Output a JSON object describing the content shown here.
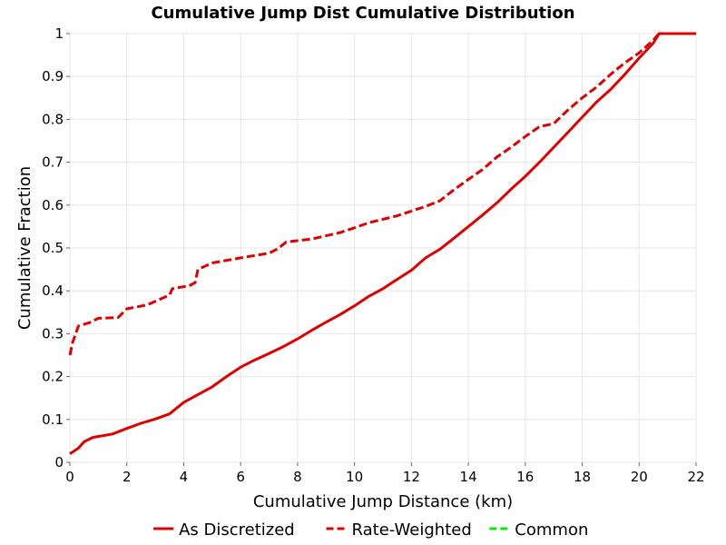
{
  "chart_data": {
    "type": "line",
    "title": "Cumulative Jump Dist Cumulative Distribution",
    "xlabel": "Cumulative Jump Distance (km)",
    "ylabel": "Cumulative Fraction",
    "xlim": [
      0,
      22
    ],
    "ylim": [
      0,
      1
    ],
    "x_ticks": [
      "0",
      "2",
      "4",
      "6",
      "8",
      "10",
      "12",
      "14",
      "16",
      "18",
      "20",
      "22"
    ],
    "y_ticks": [
      "0",
      "0.1",
      "0.2",
      "0.3",
      "0.4",
      "0.5",
      "0.6",
      "0.7",
      "0.8",
      "0.9",
      "1"
    ],
    "grid": true,
    "legend_position": "bottom",
    "series": [
      {
        "name": "As Discretized",
        "color": "#e00000",
        "dash": "solid",
        "points": [
          [
            0,
            0.02
          ],
          [
            0.3,
            0.033
          ],
          [
            0.5,
            0.048
          ],
          [
            0.8,
            0.058
          ],
          [
            1.5,
            0.066
          ],
          [
            2.0,
            0.079
          ],
          [
            2.5,
            0.091
          ],
          [
            3.0,
            0.101
          ],
          [
            3.5,
            0.113
          ],
          [
            4.0,
            0.14
          ],
          [
            4.5,
            0.158
          ],
          [
            5.0,
            0.176
          ],
          [
            5.5,
            0.2
          ],
          [
            6.0,
            0.222
          ],
          [
            6.5,
            0.239
          ],
          [
            7.0,
            0.254
          ],
          [
            7.5,
            0.27
          ],
          [
            8.0,
            0.288
          ],
          [
            8.5,
            0.308
          ],
          [
            9.0,
            0.327
          ],
          [
            9.5,
            0.345
          ],
          [
            10.0,
            0.365
          ],
          [
            10.5,
            0.387
          ],
          [
            11.0,
            0.405
          ],
          [
            11.5,
            0.427
          ],
          [
            12.0,
            0.448
          ],
          [
            12.5,
            0.477
          ],
          [
            13.0,
            0.497
          ],
          [
            13.5,
            0.523
          ],
          [
            14.0,
            0.55
          ],
          [
            14.5,
            0.577
          ],
          [
            15.0,
            0.605
          ],
          [
            15.5,
            0.637
          ],
          [
            16.0,
            0.667
          ],
          [
            16.5,
            0.7
          ],
          [
            17.0,
            0.735
          ],
          [
            17.5,
            0.77
          ],
          [
            18.0,
            0.805
          ],
          [
            18.5,
            0.84
          ],
          [
            19.0,
            0.87
          ],
          [
            19.5,
            0.905
          ],
          [
            20.0,
            0.943
          ],
          [
            20.5,
            0.978
          ],
          [
            20.7,
            1.0
          ],
          [
            22.0,
            1.0
          ]
        ]
      },
      {
        "name": "Rate-Weighted",
        "color": "#e00000",
        "dash": "dashed",
        "points": [
          [
            0,
            0.25
          ],
          [
            0.1,
            0.28
          ],
          [
            0.3,
            0.318
          ],
          [
            0.7,
            0.326
          ],
          [
            1.0,
            0.336
          ],
          [
            1.7,
            0.338
          ],
          [
            2.0,
            0.358
          ],
          [
            2.7,
            0.367
          ],
          [
            3.5,
            0.39
          ],
          [
            3.6,
            0.405
          ],
          [
            4.2,
            0.412
          ],
          [
            4.4,
            0.419
          ],
          [
            4.5,
            0.45
          ],
          [
            5.0,
            0.465
          ],
          [
            6.0,
            0.477
          ],
          [
            7.0,
            0.488
          ],
          [
            7.3,
            0.498
          ],
          [
            7.6,
            0.514
          ],
          [
            8.5,
            0.521
          ],
          [
            9.5,
            0.536
          ],
          [
            10.0,
            0.547
          ],
          [
            10.5,
            0.559
          ],
          [
            11.5,
            0.575
          ],
          [
            12.5,
            0.597
          ],
          [
            13.0,
            0.61
          ],
          [
            13.5,
            0.636
          ],
          [
            14.0,
            0.66
          ],
          [
            14.5,
            0.683
          ],
          [
            15.0,
            0.712
          ],
          [
            15.5,
            0.735
          ],
          [
            16.0,
            0.76
          ],
          [
            16.5,
            0.783
          ],
          [
            17.0,
            0.79
          ],
          [
            17.5,
            0.822
          ],
          [
            18.0,
            0.85
          ],
          [
            18.5,
            0.875
          ],
          [
            19.0,
            0.905
          ],
          [
            19.5,
            0.932
          ],
          [
            20.0,
            0.955
          ],
          [
            20.5,
            0.985
          ],
          [
            20.7,
            1.0
          ],
          [
            22.0,
            1.0
          ]
        ]
      },
      {
        "name": "Common",
        "color": "#00ee00",
        "dash": "dashed",
        "points": []
      }
    ]
  }
}
